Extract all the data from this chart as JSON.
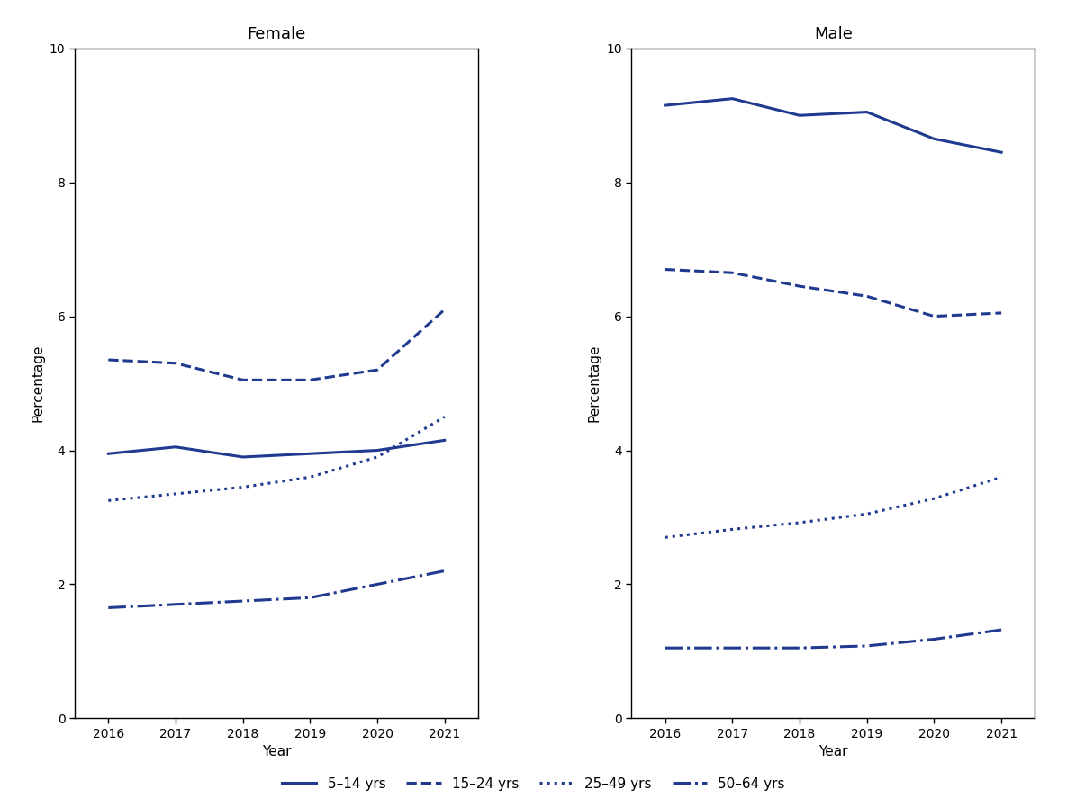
{
  "years": [
    2016,
    2017,
    2018,
    2019,
    2020,
    2021
  ],
  "female": {
    "age_5_14": [
      3.95,
      4.05,
      3.9,
      3.95,
      4.0,
      4.15
    ],
    "age_15_24": [
      5.35,
      5.3,
      5.05,
      5.05,
      5.2,
      6.1
    ],
    "age_25_49": [
      3.25,
      3.35,
      3.45,
      3.6,
      3.9,
      4.5
    ],
    "age_50_64": [
      1.65,
      1.7,
      1.75,
      1.8,
      2.0,
      2.2
    ]
  },
  "male": {
    "age_5_14": [
      9.15,
      9.25,
      9.0,
      9.05,
      8.65,
      8.45
    ],
    "age_15_24": [
      6.7,
      6.65,
      6.45,
      6.3,
      6.0,
      6.05
    ],
    "age_25_49": [
      2.7,
      2.82,
      2.92,
      3.05,
      3.28,
      3.6
    ],
    "age_50_64": [
      1.05,
      1.05,
      1.05,
      1.08,
      1.18,
      1.32
    ]
  },
  "line_color": "#1f3a8f",
  "title_female": "Female",
  "title_male": "Male",
  "ylabel": "Percentage",
  "xlabel": "Year",
  "ylim": [
    0,
    10
  ],
  "yticks": [
    0,
    2,
    4,
    6,
    8,
    10
  ],
  "bg_color": "#ffffff",
  "legend_labels": [
    "5–14 yrs",
    "15–24 yrs",
    "25–49 yrs",
    "50–64 yrs"
  ],
  "linestyles": [
    "solid",
    "dashed",
    "dotted",
    "dashdot"
  ],
  "linewidth": 2.2
}
